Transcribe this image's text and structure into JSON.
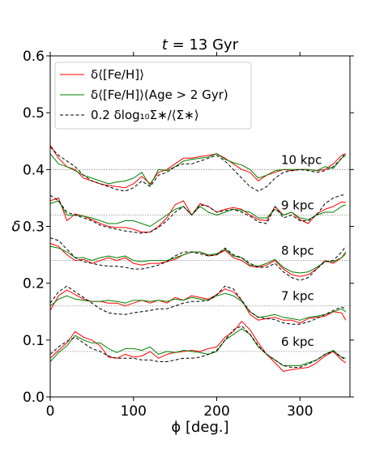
{
  "chart_data": {
    "type": "line",
    "title": "t = 13 Gyr",
    "title_italic_part": "t",
    "title_rest": " = 13 Gyr",
    "xlabel": "ϕ [deg.]",
    "ylabel": "δ",
    "xlim": [
      0,
      360
    ],
    "ylim": [
      0.0,
      0.6
    ],
    "xticks": [
      0,
      100,
      200,
      300
    ],
    "yticks": [
      0.0,
      0.1,
      0.2,
      0.3,
      0.4,
      0.5,
      0.6
    ],
    "ytick_labels": [
      "0.0",
      "0.1",
      "0.2",
      "0.3",
      "0.4",
      "0.5",
      "0.6"
    ],
    "grid": false,
    "legend_position": "upper-left",
    "legend": [
      {
        "label": "δ⟨[Fe/H]⟩",
        "color": "#ff0000",
        "style": "solid"
      },
      {
        "label": "δ⟨[Fe/H]⟩(Age > 2 Gyr)",
        "color": "#008000",
        "style": "solid"
      },
      {
        "label": "0.2 δlog₁₀Σ∗/⟨Σ∗⟩",
        "color": "#000000",
        "style": "dashed"
      }
    ],
    "x": [
      0,
      10,
      20,
      30,
      40,
      50,
      60,
      70,
      80,
      90,
      100,
      110,
      120,
      130,
      140,
      150,
      160,
      170,
      180,
      190,
      200,
      210,
      220,
      230,
      240,
      250,
      260,
      270,
      280,
      290,
      300,
      310,
      320,
      330,
      340,
      350,
      355
    ],
    "radii": [
      {
        "label": "10 kpc",
        "baseline": 0.4,
        "red": [
          0.443,
          0.42,
          0.405,
          0.4,
          0.385,
          0.38,
          0.375,
          0.372,
          0.37,
          0.368,
          0.375,
          0.388,
          0.375,
          0.395,
          0.4,
          0.41,
          0.42,
          0.42,
          0.423,
          0.425,
          0.428,
          0.42,
          0.41,
          0.4,
          0.395,
          0.38,
          0.39,
          0.395,
          0.4,
          0.398,
          0.4,
          0.4,
          0.398,
          0.4,
          0.41,
          0.425,
          0.428
        ],
        "green": [
          0.428,
          0.41,
          0.405,
          0.398,
          0.39,
          0.385,
          0.38,
          0.375,
          0.378,
          0.38,
          0.385,
          0.395,
          0.372,
          0.4,
          0.398,
          0.405,
          0.415,
          0.418,
          0.42,
          0.422,
          0.428,
          0.418,
          0.412,
          0.408,
          0.4,
          0.385,
          0.39,
          0.398,
          0.4,
          0.4,
          0.4,
          0.4,
          0.398,
          0.405,
          0.402,
          0.42,
          0.425
        ],
        "black": [
          0.44,
          0.425,
          0.415,
          0.405,
          0.39,
          0.38,
          0.375,
          0.37,
          0.365,
          0.362,
          0.368,
          0.38,
          0.37,
          0.39,
          0.395,
          0.405,
          0.41,
          0.41,
          0.415,
          0.42,
          0.425,
          0.415,
          0.4,
          0.385,
          0.37,
          0.362,
          0.37,
          0.385,
          0.395,
          0.398,
          0.4,
          0.398,
          0.395,
          0.398,
          0.405,
          0.42,
          0.43
        ]
      },
      {
        "label": "9 kpc",
        "baseline": 0.32,
        "red": [
          0.345,
          0.35,
          0.31,
          0.322,
          0.318,
          0.312,
          0.305,
          0.3,
          0.298,
          0.298,
          0.295,
          0.29,
          0.29,
          0.3,
          0.315,
          0.338,
          0.345,
          0.32,
          0.34,
          0.335,
          0.325,
          0.33,
          0.333,
          0.33,
          0.32,
          0.312,
          0.31,
          0.335,
          0.32,
          0.325,
          0.312,
          0.305,
          0.322,
          0.33,
          0.335,
          0.343,
          0.342
        ],
        "green": [
          0.34,
          0.345,
          0.32,
          0.32,
          0.318,
          0.315,
          0.31,
          0.305,
          0.305,
          0.31,
          0.31,
          0.305,
          0.3,
          0.31,
          0.32,
          0.33,
          0.335,
          0.32,
          0.335,
          0.325,
          0.32,
          0.325,
          0.33,
          0.328,
          0.325,
          0.315,
          0.315,
          0.33,
          0.32,
          0.325,
          0.315,
          0.312,
          0.32,
          0.325,
          0.325,
          0.335,
          0.338
        ],
        "black": [
          0.355,
          0.345,
          0.325,
          0.32,
          0.315,
          0.31,
          0.302,
          0.298,
          0.295,
          0.292,
          0.29,
          0.288,
          0.29,
          0.298,
          0.31,
          0.325,
          0.335,
          0.32,
          0.338,
          0.335,
          0.325,
          0.328,
          0.33,
          0.325,
          0.318,
          0.308,
          0.305,
          0.335,
          0.315,
          0.32,
          0.31,
          0.31,
          0.32,
          0.34,
          0.35,
          0.355,
          0.355
        ]
      },
      {
        "label": "8 kpc",
        "baseline": 0.24,
        "red": [
          0.27,
          0.265,
          0.25,
          0.24,
          0.242,
          0.235,
          0.24,
          0.245,
          0.24,
          0.245,
          0.235,
          0.232,
          0.235,
          0.235,
          0.238,
          0.242,
          0.25,
          0.255,
          0.255,
          0.248,
          0.25,
          0.258,
          0.245,
          0.24,
          0.23,
          0.228,
          0.232,
          0.24,
          0.225,
          0.215,
          0.212,
          0.215,
          0.225,
          0.24,
          0.235,
          0.245,
          0.252
        ],
        "green": [
          0.265,
          0.262,
          0.255,
          0.245,
          0.245,
          0.24,
          0.245,
          0.248,
          0.245,
          0.248,
          0.24,
          0.238,
          0.24,
          0.24,
          0.24,
          0.245,
          0.25,
          0.255,
          0.255,
          0.25,
          0.252,
          0.26,
          0.248,
          0.245,
          0.232,
          0.23,
          0.235,
          0.242,
          0.228,
          0.22,
          0.218,
          0.22,
          0.228,
          0.238,
          0.238,
          0.245,
          0.255
        ],
        "black": [
          0.28,
          0.275,
          0.26,
          0.245,
          0.238,
          0.235,
          0.232,
          0.23,
          0.23,
          0.228,
          0.225,
          0.225,
          0.228,
          0.232,
          0.238,
          0.248,
          0.255,
          0.255,
          0.252,
          0.248,
          0.25,
          0.262,
          0.25,
          0.245,
          0.235,
          0.228,
          0.228,
          0.235,
          0.22,
          0.21,
          0.205,
          0.21,
          0.225,
          0.238,
          0.24,
          0.255,
          0.265
        ]
      },
      {
        "label": "7 kpc",
        "baseline": 0.16,
        "red": [
          0.152,
          0.178,
          0.188,
          0.18,
          0.172,
          0.168,
          0.168,
          0.165,
          0.165,
          0.16,
          0.165,
          0.17,
          0.165,
          0.17,
          0.165,
          0.175,
          0.17,
          0.178,
          0.175,
          0.172,
          0.18,
          0.19,
          0.185,
          0.17,
          0.145,
          0.135,
          0.138,
          0.14,
          0.135,
          0.135,
          0.13,
          0.138,
          0.14,
          0.142,
          0.15,
          0.148,
          0.135
        ],
        "green": [
          0.16,
          0.172,
          0.178,
          0.172,
          0.17,
          0.168,
          0.168,
          0.17,
          0.168,
          0.165,
          0.17,
          0.17,
          0.168,
          0.17,
          0.168,
          0.172,
          0.17,
          0.175,
          0.172,
          0.17,
          0.178,
          0.182,
          0.178,
          0.168,
          0.15,
          0.14,
          0.142,
          0.145,
          0.14,
          0.138,
          0.135,
          0.14,
          0.142,
          0.145,
          0.15,
          0.155,
          0.15
        ],
        "black": [
          0.165,
          0.185,
          0.195,
          0.185,
          0.175,
          0.165,
          0.155,
          0.148,
          0.146,
          0.145,
          0.148,
          0.15,
          0.152,
          0.155,
          0.155,
          0.16,
          0.165,
          0.168,
          0.168,
          0.17,
          0.18,
          0.195,
          0.19,
          0.17,
          0.15,
          0.14,
          0.138,
          0.136,
          0.13,
          0.128,
          0.128,
          0.132,
          0.138,
          0.145,
          0.152,
          0.158,
          0.155
        ]
      },
      {
        "label": "6 kpc",
        "baseline": 0.08,
        "red": [
          0.068,
          0.082,
          0.095,
          0.115,
          0.105,
          0.1,
          0.09,
          0.07,
          0.068,
          0.075,
          0.07,
          0.072,
          0.08,
          0.068,
          0.075,
          0.078,
          0.08,
          0.082,
          0.08,
          0.085,
          0.088,
          0.105,
          0.115,
          0.133,
          0.118,
          0.095,
          0.075,
          0.06,
          0.045,
          0.048,
          0.05,
          0.052,
          0.06,
          0.072,
          0.08,
          0.065,
          0.06
        ],
        "green": [
          0.062,
          0.078,
          0.09,
          0.108,
          0.1,
          0.095,
          0.095,
          0.085,
          0.078,
          0.085,
          0.085,
          0.082,
          0.088,
          0.075,
          0.08,
          0.078,
          0.082,
          0.08,
          0.078,
          0.075,
          0.08,
          0.1,
          0.11,
          0.12,
          0.11,
          0.088,
          0.075,
          0.065,
          0.055,
          0.055,
          0.055,
          0.06,
          0.065,
          0.075,
          0.082,
          0.07,
          0.068
        ],
        "black": [
          0.075,
          0.088,
          0.098,
          0.105,
          0.095,
          0.085,
          0.08,
          0.072,
          0.068,
          0.068,
          0.068,
          0.065,
          0.065,
          0.062,
          0.062,
          0.065,
          0.068,
          0.068,
          0.07,
          0.075,
          0.082,
          0.1,
          0.118,
          0.125,
          0.11,
          0.09,
          0.075,
          0.065,
          0.055,
          0.052,
          0.052,
          0.058,
          0.065,
          0.075,
          0.08,
          0.07,
          0.065
        ]
      }
    ]
  }
}
